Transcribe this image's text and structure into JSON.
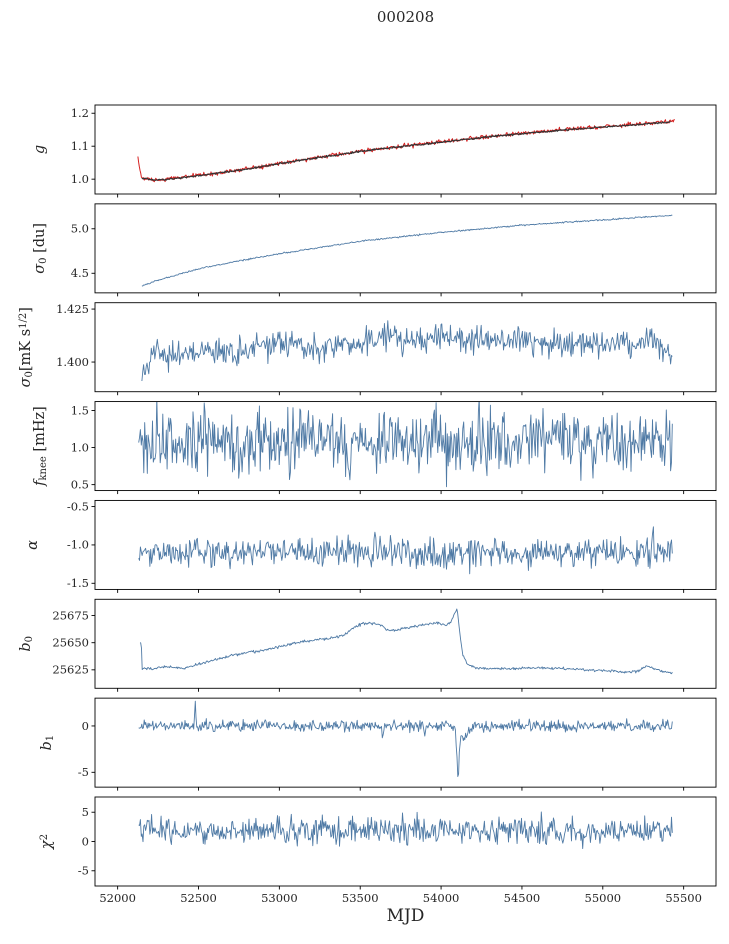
{
  "title": "000208",
  "figure": {
    "bg": "#ffffff",
    "axis_color": "#000000",
    "tick_text_color": "#262626",
    "line_blue": "#4f7aa5",
    "line_red": "#d62020",
    "line_dark": "#333333"
  },
  "x": {
    "lim": [
      51860,
      55700
    ],
    "ticks": [
      52000,
      52500,
      53000,
      53500,
      54000,
      54500,
      55000,
      55500
    ],
    "label": "MJD"
  },
  "chart_data": [
    {
      "name": "g",
      "type": "line",
      "ylim": [
        0.955,
        1.225
      ],
      "yticks": [
        {
          "v": 1.0,
          "label": "1.0"
        },
        {
          "v": 1.1,
          "label": "1.1"
        },
        {
          "v": 1.2,
          "label": "1.2"
        }
      ],
      "ylabel_parts": [
        {
          "t": "g",
          "s": "it"
        }
      ],
      "series": [
        {
          "name": "gain-raw",
          "color_key": "line_red",
          "width": 1.0,
          "n": 750,
          "noise": 0.003,
          "trend": [
            [
              52125,
              1.068
            ],
            [
              52132,
              1.045
            ],
            [
              52140,
              1.02
            ],
            [
              52150,
              1.003
            ],
            [
              52220,
              0.997
            ],
            [
              52300,
              1.0
            ],
            [
              52500,
              1.012
            ],
            [
              52750,
              1.028
            ],
            [
              53000,
              1.048
            ],
            [
              53250,
              1.067
            ],
            [
              53500,
              1.085
            ],
            [
              53750,
              1.1
            ],
            [
              54000,
              1.113
            ],
            [
              54250,
              1.127
            ],
            [
              54500,
              1.139
            ],
            [
              54750,
              1.15
            ],
            [
              55000,
              1.159
            ],
            [
              55150,
              1.164
            ],
            [
              55300,
              1.17
            ],
            [
              55380,
              1.174
            ],
            [
              55445,
              1.178
            ]
          ],
          "anomalies": []
        },
        {
          "name": "gain-fit",
          "color_key": "line_dark",
          "width": 1.2,
          "n": 700,
          "noise": 0.0012,
          "trend": [
            [
              52150,
              1.004
            ],
            [
              52220,
              0.997
            ],
            [
              52300,
              0.999
            ],
            [
              52500,
              1.011
            ],
            [
              52750,
              1.027
            ],
            [
              53000,
              1.047
            ],
            [
              53250,
              1.066
            ],
            [
              53500,
              1.084
            ],
            [
              53750,
              1.099
            ],
            [
              54000,
              1.112
            ],
            [
              54250,
              1.126
            ],
            [
              54500,
              1.138
            ],
            [
              54750,
              1.149
            ],
            [
              55000,
              1.158
            ],
            [
              55150,
              1.163
            ],
            [
              55300,
              1.169
            ],
            [
              55420,
              1.173
            ]
          ],
          "anomalies": []
        }
      ]
    },
    {
      "name": "sigma0-du",
      "type": "line",
      "ylim": [
        4.28,
        5.28
      ],
      "yticks": [
        {
          "v": 4.5,
          "label": "4.5"
        },
        {
          "v": 5.0,
          "label": "5.0"
        }
      ],
      "ylabel_parts": [
        {
          "t": "σ",
          "s": "it"
        },
        {
          "t": "0",
          "s": "sub"
        },
        {
          "t": " [du]",
          "s": "n"
        }
      ],
      "series": [
        {
          "name": "sigma0-du",
          "color_key": "line_blue",
          "width": 0.9,
          "n": 620,
          "noise": 0.004,
          "trend": [
            [
              52150,
              4.36
            ],
            [
              52250,
              4.42
            ],
            [
              52500,
              4.55
            ],
            [
              52750,
              4.64
            ],
            [
              53000,
              4.72
            ],
            [
              53250,
              4.79
            ],
            [
              53500,
              4.86
            ],
            [
              53750,
              4.91
            ],
            [
              54000,
              4.96
            ],
            [
              54250,
              5.0
            ],
            [
              54500,
              5.04
            ],
            [
              54750,
              5.07
            ],
            [
              55000,
              5.1
            ],
            [
              55250,
              5.13
            ],
            [
              55430,
              5.15
            ]
          ],
          "anomalies": []
        }
      ]
    },
    {
      "name": "sigma0-mks",
      "type": "line",
      "ylim": [
        1.386,
        1.428
      ],
      "yticks": [
        {
          "v": 1.4,
          "label": "1.400"
        },
        {
          "v": 1.425,
          "label": "1.425"
        }
      ],
      "ylabel_parts": [
        {
          "t": "σ",
          "s": "it"
        },
        {
          "t": "0",
          "s": "sub"
        },
        {
          "t": "[mK s",
          "s": "n"
        },
        {
          "t": "1/2",
          "s": "sup"
        },
        {
          "t": "]",
          "s": "n"
        }
      ],
      "series": [
        {
          "name": "sigma0-mks",
          "color_key": "line_blue",
          "width": 0.9,
          "n": 620,
          "noise": 0.0033,
          "trend": [
            [
              52150,
              1.396
            ],
            [
              52250,
              1.405
            ],
            [
              52500,
              1.404
            ],
            [
              52750,
              1.406
            ],
            [
              53000,
              1.409
            ],
            [
              53250,
              1.407
            ],
            [
              53500,
              1.41
            ],
            [
              53750,
              1.411
            ],
            [
              54000,
              1.412
            ],
            [
              54250,
              1.41
            ],
            [
              54500,
              1.411
            ],
            [
              54750,
              1.408
            ],
            [
              55000,
              1.408
            ],
            [
              55250,
              1.41
            ],
            [
              55350,
              1.407
            ],
            [
              55430,
              1.402
            ]
          ],
          "anomalies": []
        }
      ]
    },
    {
      "name": "f-knee",
      "type": "line",
      "ylim": [
        0.42,
        1.62
      ],
      "yticks": [
        {
          "v": 0.5,
          "label": "0.5"
        },
        {
          "v": 1.0,
          "label": "1.0"
        },
        {
          "v": 1.5,
          "label": "1.5"
        }
      ],
      "ylabel_parts": [
        {
          "t": "f",
          "s": "it"
        },
        {
          "t": "knee",
          "s": "sub"
        },
        {
          "t": " [mHz]",
          "s": "n"
        }
      ],
      "series": [
        {
          "name": "f-knee",
          "color_key": "line_blue",
          "width": 0.9,
          "n": 620,
          "noise": 0.21,
          "trend": [
            [
              52130,
              1.08
            ],
            [
              55430,
              1.08
            ]
          ],
          "anomalies": [
            {
              "x": 53660,
              "w": 7,
              "a": -0.42
            },
            {
              "x": 54800,
              "w": 7,
              "a": -0.35
            }
          ]
        }
      ]
    },
    {
      "name": "alpha",
      "type": "line",
      "ylim": [
        -1.58,
        -0.42
      ],
      "yticks": [
        {
          "v": -1.5,
          "label": "-1.5"
        },
        {
          "v": -1.0,
          "label": "-1.0"
        },
        {
          "v": -0.5,
          "label": "-0.5"
        }
      ],
      "ylabel_parts": [
        {
          "t": "α",
          "s": "it"
        }
      ],
      "series": [
        {
          "name": "alpha",
          "color_key": "line_blue",
          "width": 0.9,
          "n": 620,
          "noise": 0.095,
          "trend": [
            [
              52130,
              -1.1
            ],
            [
              55430,
              -1.1
            ]
          ],
          "anomalies": [
            {
              "x": 53590,
              "w": 5,
              "a": 0.38
            },
            {
              "x": 55310,
              "w": 5,
              "a": 0.3
            }
          ]
        }
      ]
    },
    {
      "name": "b0",
      "type": "line",
      "ylim": [
        25608,
        25690
      ],
      "yticks": [
        {
          "v": 25625,
          "label": "25625"
        },
        {
          "v": 25650,
          "label": "25650"
        },
        {
          "v": 25675,
          "label": "25675"
        }
      ],
      "ylabel_parts": [
        {
          "t": "b",
          "s": "it"
        },
        {
          "t": "0",
          "s": "sub"
        }
      ],
      "series": [
        {
          "name": "b0",
          "color_key": "line_blue",
          "width": 0.9,
          "n": 700,
          "noise": 0.6,
          "trend": [
            [
              52138,
              25649
            ],
            [
              52146,
              25650
            ],
            [
              52152,
              25626
            ],
            [
              52200,
              25626
            ],
            [
              52300,
              25628
            ],
            [
              52400,
              25626
            ],
            [
              52500,
              25630
            ],
            [
              52600,
              25634
            ],
            [
              52700,
              25638
            ],
            [
              52800,
              25641
            ],
            [
              52900,
              25643
            ],
            [
              53000,
              25646
            ],
            [
              53100,
              25650
            ],
            [
              53200,
              25652
            ],
            [
              53300,
              25654
            ],
            [
              53400,
              25657
            ],
            [
              53460,
              25664
            ],
            [
              53520,
              25668
            ],
            [
              53580,
              25668
            ],
            [
              53630,
              25666
            ],
            [
              53670,
              25661
            ],
            [
              53720,
              25662
            ],
            [
              53800,
              25664
            ],
            [
              53900,
              25667
            ],
            [
              53980,
              25668
            ],
            [
              54030,
              25666
            ],
            [
              54060,
              25669
            ],
            [
              54085,
              25678
            ],
            [
              54100,
              25681
            ],
            [
              54115,
              25660
            ],
            [
              54135,
              25638
            ],
            [
              54165,
              25630
            ],
            [
              54220,
              25627
            ],
            [
              54300,
              25626
            ],
            [
              54450,
              25626
            ],
            [
              54600,
              25627
            ],
            [
              54750,
              25626
            ],
            [
              54900,
              25625
            ],
            [
              55050,
              25624
            ],
            [
              55150,
              25623
            ],
            [
              55220,
              25624
            ],
            [
              55270,
              25629
            ],
            [
              55320,
              25626
            ],
            [
              55380,
              25623
            ],
            [
              55430,
              25622
            ]
          ],
          "anomalies": []
        }
      ]
    },
    {
      "name": "b1",
      "type": "line",
      "ylim": [
        -6.6,
        3.0
      ],
      "yticks": [
        {
          "v": -5,
          "label": "-5"
        },
        {
          "v": 0,
          "label": "0"
        }
      ],
      "ylabel_parts": [
        {
          "t": "b",
          "s": "it"
        },
        {
          "t": "1",
          "s": "sub"
        }
      ],
      "series": [
        {
          "name": "b1",
          "color_key": "line_blue",
          "width": 0.9,
          "n": 680,
          "noise": 0.3,
          "trend": [
            [
              52130,
              0
            ],
            [
              55430,
              0
            ]
          ],
          "anomalies": [
            {
              "x": 52480,
              "w": 5,
              "a": 2.6
            },
            {
              "x": 52600,
              "w": 4,
              "a": -0.9
            },
            {
              "x": 53640,
              "w": 6,
              "a": -1.6
            },
            {
              "x": 53900,
              "w": 5,
              "a": -1.1
            },
            {
              "x": 54105,
              "w": 10,
              "a": -5.0
            },
            {
              "x": 54145,
              "w": 40,
              "a": -1.2
            }
          ]
        }
      ]
    },
    {
      "name": "chi2",
      "type": "line",
      "ylim": [
        -7.6,
        7.6
      ],
      "yticks": [
        {
          "v": -5,
          "label": "-5"
        },
        {
          "v": 0,
          "label": "0"
        },
        {
          "v": 5,
          "label": "5"
        }
      ],
      "ylabel_parts": [
        {
          "t": "χ",
          "s": "it"
        },
        {
          "t": "2",
          "s": "sup"
        }
      ],
      "series": [
        {
          "name": "chi2",
          "color_key": "line_blue",
          "width": 0.9,
          "n": 620,
          "noise": 1.15,
          "trend": [
            [
              52130,
              1.8
            ],
            [
              55430,
              1.8
            ]
          ],
          "anomalies": []
        }
      ]
    }
  ]
}
